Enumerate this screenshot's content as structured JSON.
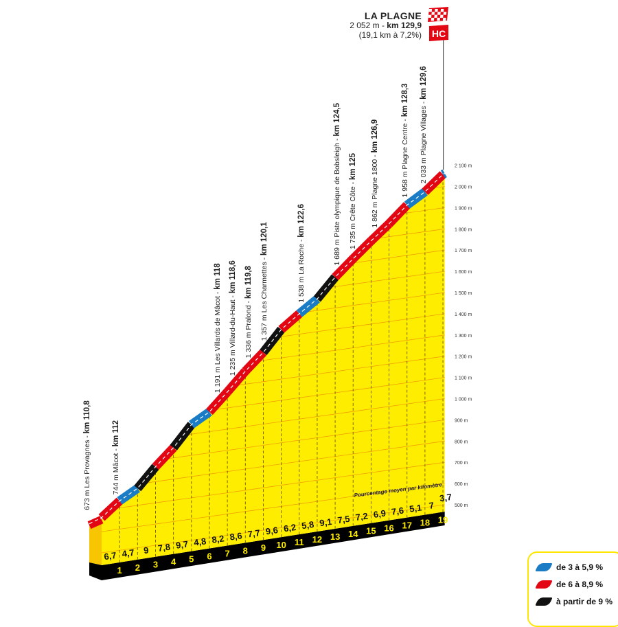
{
  "summit": {
    "name": "LA PLAGNE",
    "altitude": "2 052 m - ",
    "km": "km 129,9",
    "climb": "(19,1 km à 7,2%)",
    "category": "HC"
  },
  "legend": [
    {
      "label": "de 3 à 5,9 %",
      "color": "#1a7cc4"
    },
    {
      "label": "de 6 à 8,9 %",
      "color": "#e30613"
    },
    {
      "label": "à partir de 9 %",
      "color": "#111111"
    }
  ],
  "colors": {
    "fill": "#ffed00",
    "side": "#f7c600",
    "grid": "#f0a000",
    "base": "#000000",
    "km_text": "#ffed00"
  },
  "chart_data": {
    "type": "area",
    "title": "",
    "xlabel": "",
    "ylabel": "",
    "avg_label": "Pourcentage moyen par kilomètre",
    "km_labels": [
      "1",
      "2",
      "3",
      "4",
      "5",
      "6",
      "7",
      "8",
      "9",
      "10",
      "11",
      "12",
      "13",
      "14",
      "15",
      "16",
      "17",
      "18",
      "19"
    ],
    "gradients": [
      6.7,
      4.7,
      9,
      7.8,
      9.7,
      4.8,
      8.2,
      8.6,
      7.7,
      9.6,
      6.2,
      5.8,
      9.1,
      7.5,
      7.2,
      6.9,
      7.6,
      5.1,
      7,
      3.7
    ],
    "gradient_labels": [
      "6,7",
      "4,7",
      "9",
      "7,8",
      "9,7",
      "4,8",
      "8,2",
      "8,6",
      "7,7",
      "9,6",
      "6,2",
      "5,8",
      "9,1",
      "7,5",
      "7,2",
      "6,9",
      "7,6",
      "5,1",
      "7",
      "3,7"
    ],
    "total_km": 19.1,
    "start_km": 110.8,
    "summit_elevation": 2052,
    "ylim": [
      500,
      2100
    ],
    "y_ticks": [
      "500 m",
      "600 m",
      "700 m",
      "800 m",
      "900 m",
      "1 000 m",
      "1 100 m",
      "1 200 m",
      "1 300 m",
      "1 400 m",
      "1 500 m",
      "1 600 m",
      "1 700 m",
      "1 800 m",
      "1 900 m",
      "2 000 m",
      "2 100 m"
    ],
    "waypoints": [
      {
        "label": "673 m Les Provagnes - ",
        "km_label": "km 110,8",
        "km": 110.8
      },
      {
        "label": "744 m Mâcot - ",
        "km_label": "km 112",
        "km": 112
      },
      {
        "label": "1 191 m  Les Villards de Mâcot - ",
        "km_label": "km 118",
        "km": 118
      },
      {
        "label": "1 235 m Villard-du-Haut - ",
        "km_label": "km 118,6",
        "km": 118.6
      },
      {
        "label": "1 336 m Pralond - ",
        "km_label": "km 119,8",
        "km": 119.8
      },
      {
        "label": "1 357 m Les Charmettes - ",
        "km_label": "km 120,1",
        "km": 120.1
      },
      {
        "label": "1 538 m La Roche - ",
        "km_label": "km 122,6",
        "km": 122.6
      },
      {
        "label": "1 689 m Piste olympique de Bobsleigh - ",
        "km_label": "km 124,5",
        "km": 124.5
      },
      {
        "label": "1 735 m Crête Côte - ",
        "km_label": "km 125",
        "km": 125
      },
      {
        "label": "1 862 m Plagne 1800 - ",
        "km_label": "km 126,9",
        "km": 126.9
      },
      {
        "label": "1 958 m Plagne Centre - ",
        "km_label": "km 128,3",
        "km": 128.3
      },
      {
        "label": "2 033 m Plagne Villages - ",
        "km_label": "km 129,6",
        "km": 129.6
      }
    ],
    "grid": true
  }
}
